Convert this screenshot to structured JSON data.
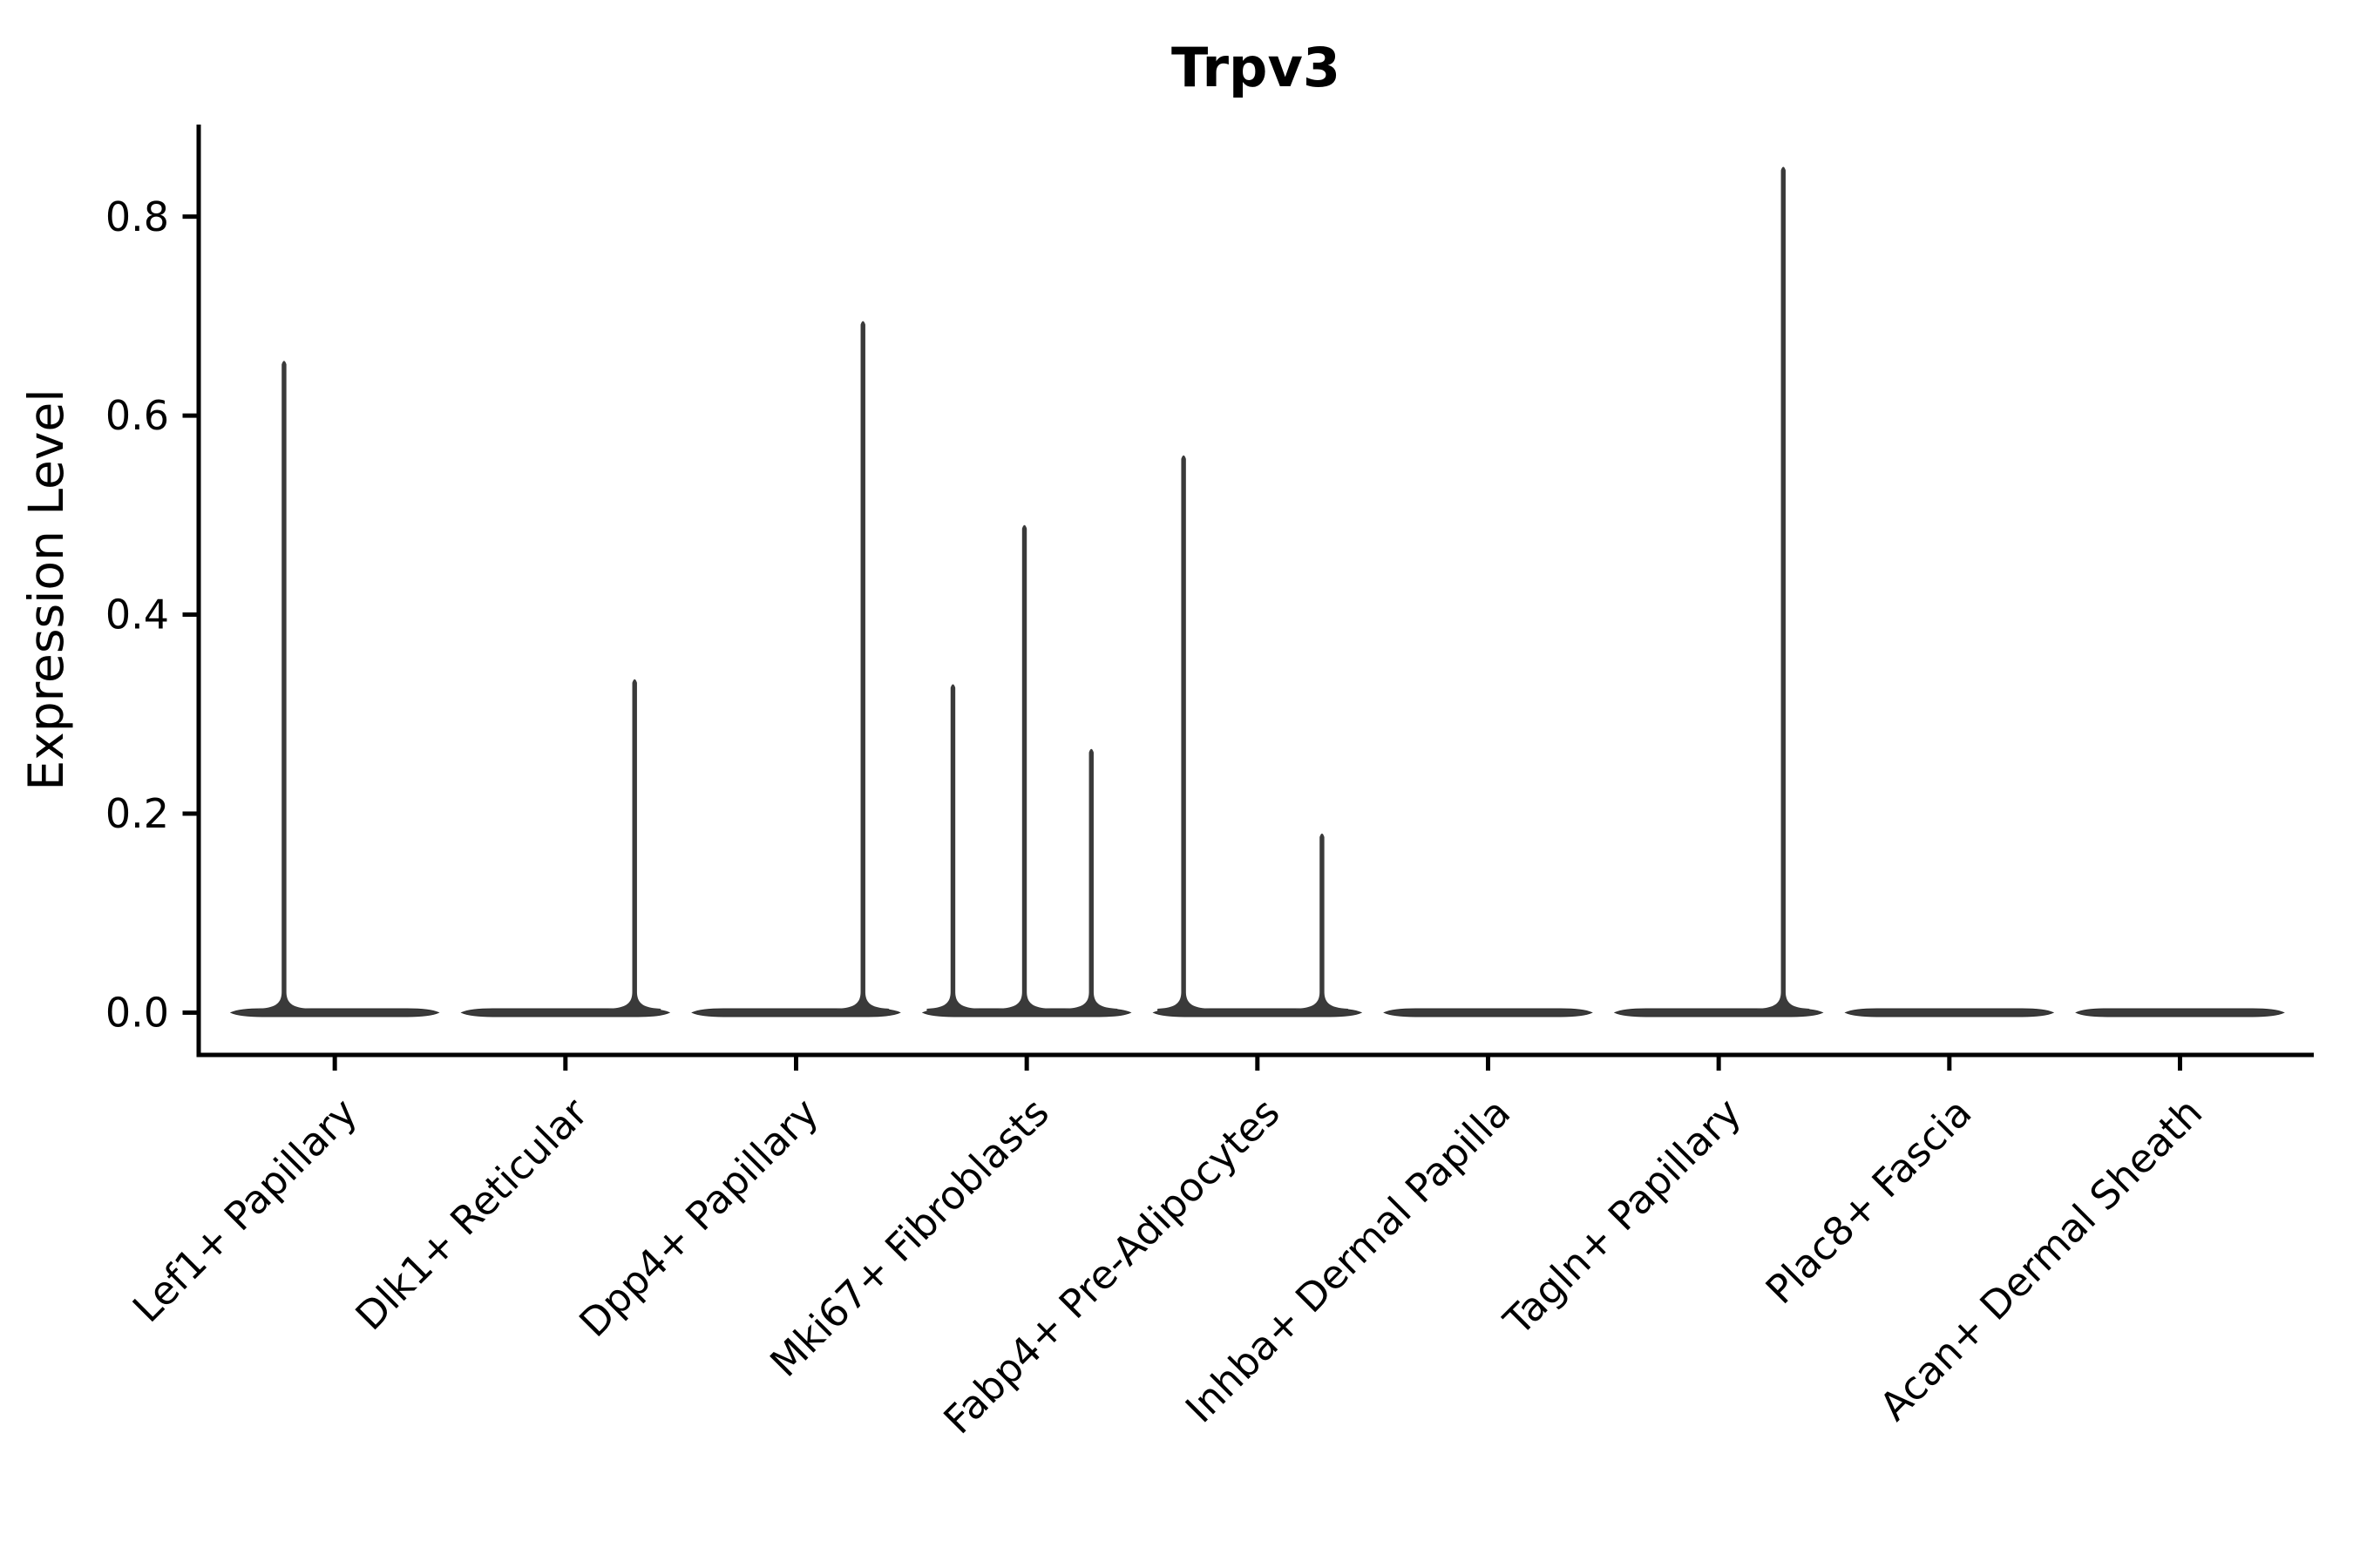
{
  "page": {
    "background": "#ffffff"
  },
  "chart_data": {
    "type": "violin",
    "title": "Trpv3",
    "xlabel": "",
    "ylabel": "Expression Level",
    "categories": [
      "Lef1+ Papillary",
      "Dlk1+ Reticular",
      "Dpp4+ Papillary",
      "Mki67+ Fibroblasts",
      "Fabp4+ Pre-Adipocytes",
      "Inhba+ Dermal Papilla",
      "Tagln+ Papillary",
      "Plac8+ Fascia",
      "Acan+ Dermal Sheath"
    ],
    "positions": [
      1,
      2,
      3,
      4,
      5,
      6,
      7,
      8,
      9
    ],
    "ytick_labels": [
      "0.0",
      "0.2",
      "0.4",
      "0.6",
      "0.8"
    ],
    "ytick_values": [
      0.0,
      0.2,
      0.4,
      0.6,
      0.8
    ],
    "ylim": [
      -0.0425,
      0.8925
    ],
    "xlim": [
      0.41,
      9.58
    ],
    "violin_width": 0.9,
    "baseline_value": 0.0,
    "grid": false,
    "legend": null,
    "violins": [
      {
        "category": "Lef1+ Papillary",
        "spikes": [
          {
            "offset": -0.22,
            "value": 0.655
          }
        ]
      },
      {
        "category": "Dlk1+ Reticular",
        "spikes": [
          {
            "offset": 0.3,
            "value": 0.335
          }
        ]
      },
      {
        "category": "Dpp4+ Papillary",
        "spikes": [
          {
            "offset": 0.29,
            "value": 0.695
          }
        ]
      },
      {
        "category": "Mki67+ Fibroblasts",
        "spikes": [
          {
            "offset": -0.32,
            "value": 0.33
          },
          {
            "offset": -0.01,
            "value": 0.49
          },
          {
            "offset": 0.28,
            "value": 0.265
          }
        ]
      },
      {
        "category": "Fabp4+ Pre-Adipocytes",
        "spikes": [
          {
            "offset": -0.32,
            "value": 0.56
          },
          {
            "offset": 0.28,
            "value": 0.18
          }
        ]
      },
      {
        "category": "Inhba+ Dermal Papilla",
        "spikes": []
      },
      {
        "category": "Tagln+ Papillary",
        "spikes": [
          {
            "offset": 0.28,
            "value": 0.85
          }
        ]
      },
      {
        "category": "Plac8+ Fascia",
        "spikes": []
      },
      {
        "category": "Acan+ Dermal Sheath",
        "spikes": []
      }
    ],
    "colors": {
      "violin_fill": "#3a3a3a",
      "violin_edge": "#2a2a2a",
      "axis": "#000000",
      "text": "#000000"
    }
  }
}
